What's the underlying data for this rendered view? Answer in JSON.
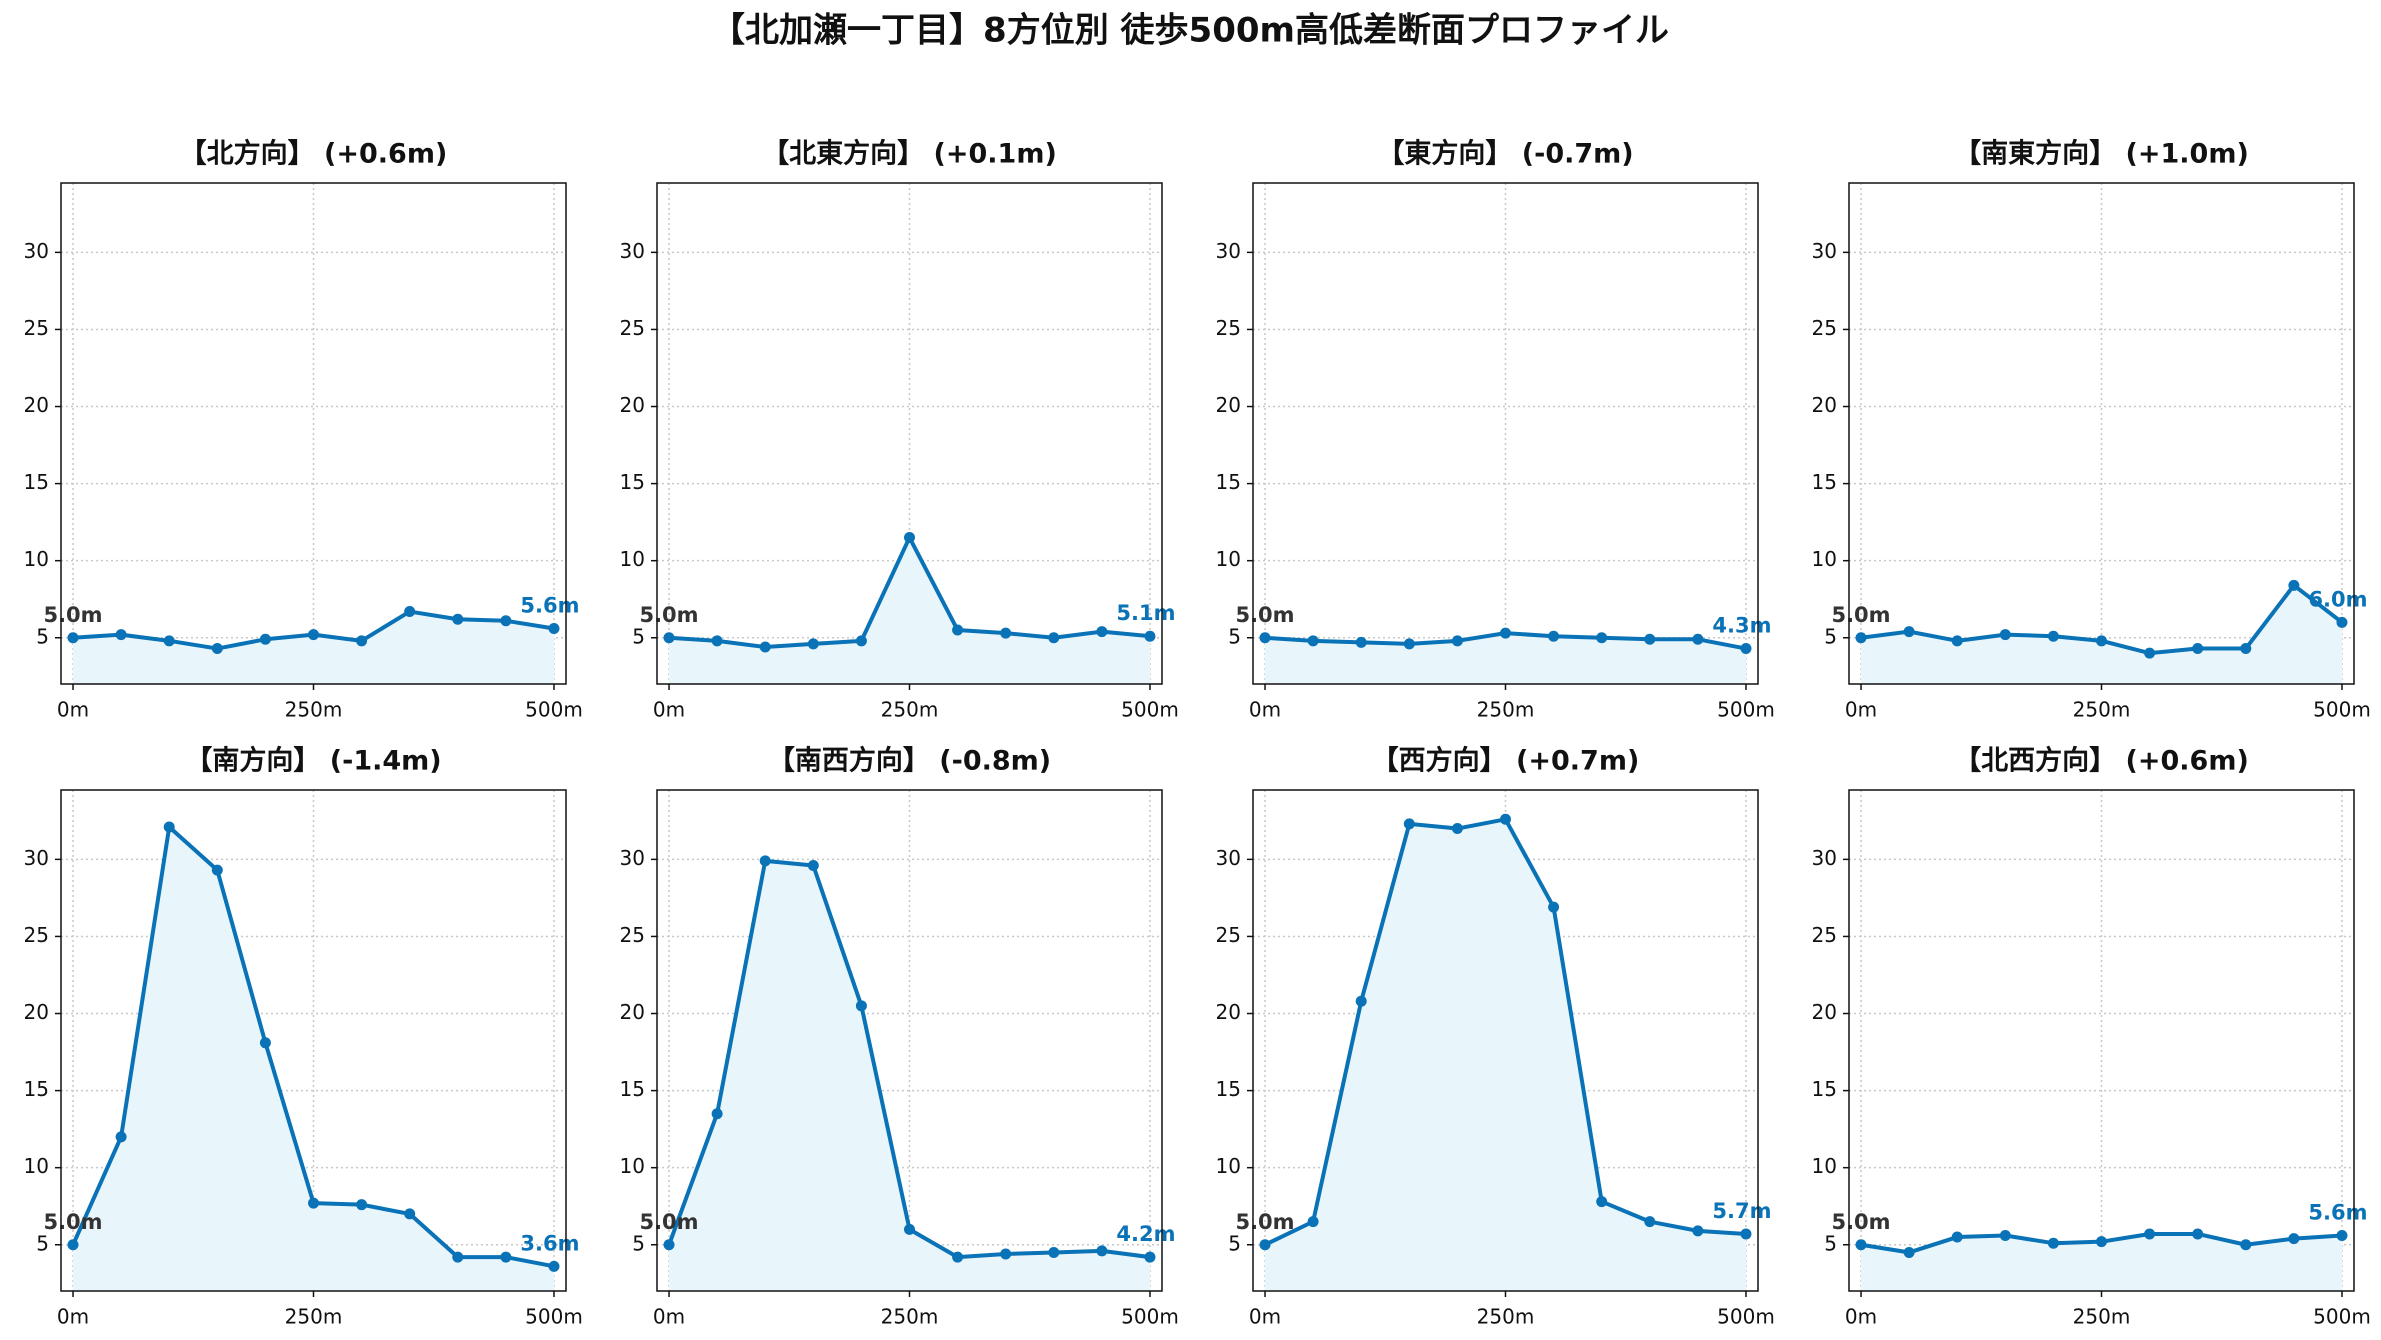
{
  "title": "【北加瀬一丁目】8方位別 徒歩500m高低差断面プロファイル",
  "chart_data": [
    {
      "type": "line",
      "title": "【北方向】 (+0.6m)",
      "color": "#0a72b6",
      "fill": "#e8f6fc",
      "grid": true,
      "x": [
        0,
        50,
        100,
        150,
        200,
        250,
        300,
        350,
        400,
        450,
        500
      ],
      "values": [
        5.0,
        5.2,
        4.8,
        4.3,
        4.9,
        5.2,
        4.8,
        6.7,
        6.2,
        6.1,
        5.6
      ],
      "value_labels": [
        "5.0m",
        null,
        null,
        null,
        null,
        null,
        null,
        null,
        null,
        null,
        "5.6m"
      ],
      "xlim": [
        -12.5,
        512.5
      ],
      "ylim": [
        2.0,
        34.5
      ],
      "xticks": [
        {
          "value": 0,
          "label": "0m"
        },
        {
          "value": 250,
          "label": "250m"
        },
        {
          "value": 500,
          "label": "500m"
        }
      ],
      "yticks": [
        5,
        10,
        15,
        20,
        25,
        30
      ]
    },
    {
      "type": "line",
      "title": "【北東方向】 (+0.1m)",
      "color": "#0a72b6",
      "fill": "#e8f6fc",
      "grid": true,
      "x": [
        0,
        50,
        100,
        150,
        200,
        250,
        300,
        350,
        400,
        450,
        500
      ],
      "values": [
        5.0,
        4.8,
        4.4,
        4.6,
        4.8,
        11.5,
        5.5,
        5.3,
        5.0,
        5.4,
        5.1
      ],
      "value_labels": [
        "5.0m",
        null,
        null,
        null,
        null,
        null,
        null,
        null,
        null,
        null,
        "5.1m"
      ],
      "xlim": [
        -12.5,
        512.5
      ],
      "ylim": [
        2.0,
        34.5
      ],
      "xticks": [
        {
          "value": 0,
          "label": "0m"
        },
        {
          "value": 250,
          "label": "250m"
        },
        {
          "value": 500,
          "label": "500m"
        }
      ],
      "yticks": [
        5,
        10,
        15,
        20,
        25,
        30
      ]
    },
    {
      "type": "line",
      "title": "【東方向】 (-0.7m)",
      "color": "#0a72b6",
      "fill": "#e8f6fc",
      "grid": true,
      "x": [
        0,
        50,
        100,
        150,
        200,
        250,
        300,
        350,
        400,
        450,
        500
      ],
      "values": [
        5.0,
        4.8,
        4.7,
        4.6,
        4.8,
        5.3,
        5.1,
        5.0,
        4.9,
        4.9,
        4.3
      ],
      "value_labels": [
        "5.0m",
        null,
        null,
        null,
        null,
        null,
        null,
        null,
        null,
        null,
        "4.3m"
      ],
      "xlim": [
        -12.5,
        512.5
      ],
      "ylim": [
        2.0,
        34.5
      ],
      "xticks": [
        {
          "value": 0,
          "label": "0m"
        },
        {
          "value": 250,
          "label": "250m"
        },
        {
          "value": 500,
          "label": "500m"
        }
      ],
      "yticks": [
        5,
        10,
        15,
        20,
        25,
        30
      ]
    },
    {
      "type": "line",
      "title": "【南東方向】 (+1.0m)",
      "color": "#0a72b6",
      "fill": "#e8f6fc",
      "grid": true,
      "x": [
        0,
        50,
        100,
        150,
        200,
        250,
        300,
        350,
        400,
        450,
        500
      ],
      "values": [
        5.0,
        5.4,
        4.8,
        5.2,
        5.1,
        4.8,
        4.0,
        4.3,
        4.3,
        8.4,
        6.0
      ],
      "value_labels": [
        "5.0m",
        null,
        null,
        null,
        null,
        null,
        null,
        null,
        null,
        null,
        "6.0m"
      ],
      "xlim": [
        -12.5,
        512.5
      ],
      "ylim": [
        2.0,
        34.5
      ],
      "xticks": [
        {
          "value": 0,
          "label": "0m"
        },
        {
          "value": 250,
          "label": "250m"
        },
        {
          "value": 500,
          "label": "500m"
        }
      ],
      "yticks": [
        5,
        10,
        15,
        20,
        25,
        30
      ]
    },
    {
      "type": "line",
      "title": "【南方向】 (-1.4m)",
      "color": "#0a72b6",
      "fill": "#e8f6fc",
      "grid": true,
      "x": [
        0,
        50,
        100,
        150,
        200,
        250,
        300,
        350,
        400,
        450,
        500
      ],
      "values": [
        5.0,
        12.0,
        32.1,
        29.3,
        18.1,
        7.7,
        7.6,
        7.0,
        4.2,
        4.2,
        3.6
      ],
      "value_labels": [
        "5.0m",
        null,
        null,
        null,
        null,
        null,
        null,
        null,
        null,
        null,
        "3.6m"
      ],
      "xlim": [
        -12.5,
        512.5
      ],
      "ylim": [
        2.0,
        34.5
      ],
      "xticks": [
        {
          "value": 0,
          "label": "0m"
        },
        {
          "value": 250,
          "label": "250m"
        },
        {
          "value": 500,
          "label": "500m"
        }
      ],
      "yticks": [
        5,
        10,
        15,
        20,
        25,
        30
      ]
    },
    {
      "type": "line",
      "title": "【南西方向】 (-0.8m)",
      "color": "#0a72b6",
      "fill": "#e8f6fc",
      "grid": true,
      "x": [
        0,
        50,
        100,
        150,
        200,
        250,
        300,
        350,
        400,
        450,
        500
      ],
      "values": [
        5.0,
        13.5,
        29.9,
        29.6,
        20.5,
        6.0,
        4.2,
        4.4,
        4.5,
        4.6,
        4.2
      ],
      "value_labels": [
        "5.0m",
        null,
        null,
        null,
        null,
        null,
        null,
        null,
        null,
        null,
        "4.2m"
      ],
      "xlim": [
        -12.5,
        512.5
      ],
      "ylim": [
        2.0,
        34.5
      ],
      "xticks": [
        {
          "value": 0,
          "label": "0m"
        },
        {
          "value": 250,
          "label": "250m"
        },
        {
          "value": 500,
          "label": "500m"
        }
      ],
      "yticks": [
        5,
        10,
        15,
        20,
        25,
        30
      ]
    },
    {
      "type": "line",
      "title": "【西方向】 (+0.7m)",
      "color": "#0a72b6",
      "fill": "#e8f6fc",
      "grid": true,
      "x": [
        0,
        50,
        100,
        150,
        200,
        250,
        300,
        350,
        400,
        450,
        500
      ],
      "values": [
        5.0,
        6.5,
        20.8,
        32.3,
        32.0,
        32.6,
        26.9,
        7.8,
        6.5,
        5.9,
        5.7
      ],
      "value_labels": [
        "5.0m",
        null,
        null,
        null,
        null,
        null,
        null,
        null,
        null,
        null,
        "5.7m"
      ],
      "xlim": [
        -12.5,
        512.5
      ],
      "ylim": [
        2.0,
        34.5
      ],
      "xticks": [
        {
          "value": 0,
          "label": "0m"
        },
        {
          "value": 250,
          "label": "250m"
        },
        {
          "value": 500,
          "label": "500m"
        }
      ],
      "yticks": [
        5,
        10,
        15,
        20,
        25,
        30
      ]
    },
    {
      "type": "line",
      "title": "【北西方向】 (+0.6m)",
      "color": "#0a72b6",
      "fill": "#e8f6fc",
      "grid": true,
      "x": [
        0,
        50,
        100,
        150,
        200,
        250,
        300,
        350,
        400,
        450,
        500
      ],
      "values": [
        5.0,
        4.5,
        5.5,
        5.6,
        5.1,
        5.2,
        5.7,
        5.7,
        5.0,
        5.4,
        5.6
      ],
      "value_labels": [
        "5.0m",
        null,
        null,
        null,
        null,
        null,
        null,
        null,
        null,
        null,
        "5.6m"
      ],
      "xlim": [
        -12.5,
        512.5
      ],
      "ylim": [
        2.0,
        34.5
      ],
      "xticks": [
        {
          "value": 0,
          "label": "0m"
        },
        {
          "value": 250,
          "label": "250m"
        },
        {
          "value": 500,
          "label": "500m"
        }
      ],
      "yticks": [
        5,
        10,
        15,
        20,
        25,
        30
      ]
    }
  ]
}
